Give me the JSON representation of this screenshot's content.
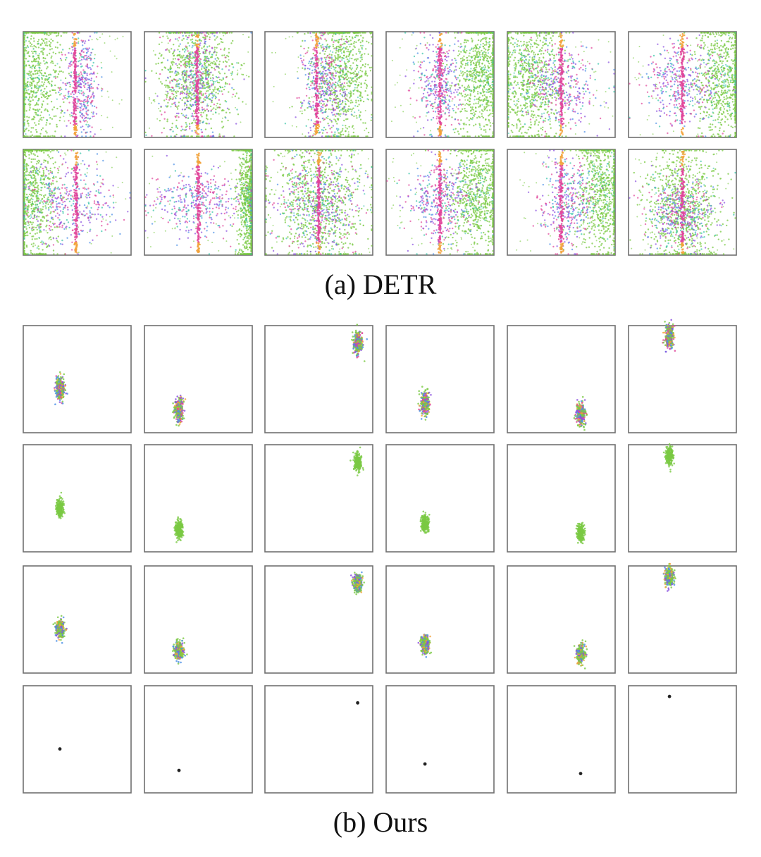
{
  "captions": {
    "a": "(a) DETR",
    "b": "(b) Ours"
  },
  "colors": {
    "green": "#7ac943",
    "teal": "#36c4a8",
    "blue": "#4a8ee6",
    "purple": "#8a4fe0",
    "magenta": "#e0449a",
    "orange": "#f2a23a",
    "black": "#222222"
  },
  "chart_data": [
    {
      "type": "scatter",
      "panel_group": "DETR",
      "rows": 2,
      "cols": 6,
      "xlim": [
        0,
        1
      ],
      "ylim": [
        0,
        1
      ],
      "grid": false,
      "panels": [
        {
          "green": {
            "cx": 0.1,
            "cy": 0.55,
            "sx": 0.14,
            "sy": 0.35
          },
          "dense": {
            "cx": 0.55,
            "cy": 0.5,
            "sx": 0.08,
            "sy": 0.25
          },
          "line_x": 0.48
        },
        {
          "green": {
            "cx": 0.48,
            "cy": 0.6,
            "sx": 0.17,
            "sy": 0.3
          },
          "dense": {
            "cx": 0.47,
            "cy": 0.5,
            "sx": 0.15,
            "sy": 0.28
          },
          "line_x": 0.49
        },
        {
          "green": {
            "cx": 0.72,
            "cy": 0.6,
            "sx": 0.14,
            "sy": 0.33
          },
          "dense": {
            "cx": 0.55,
            "cy": 0.5,
            "sx": 0.1,
            "sy": 0.25
          },
          "line_x": 0.48
        },
        {
          "green": {
            "cx": 0.88,
            "cy": 0.6,
            "sx": 0.12,
            "sy": 0.3
          },
          "dense": {
            "cx": 0.5,
            "cy": 0.5,
            "sx": 0.1,
            "sy": 0.25
          },
          "line_x": 0.5
        },
        {
          "green": {
            "cx": 0.2,
            "cy": 0.55,
            "sx": 0.16,
            "sy": 0.33
          },
          "dense": {
            "cx": 0.5,
            "cy": 0.5,
            "sx": 0.17,
            "sy": 0.2
          },
          "line_x": 0.5
        },
        {
          "green": {
            "cx": 0.9,
            "cy": 0.55,
            "sx": 0.14,
            "sy": 0.3
          },
          "dense": {
            "cx": 0.5,
            "cy": 0.5,
            "sx": 0.18,
            "sy": 0.2
          },
          "line_x": 0.5
        }
      ],
      "panels_row2": [
        {
          "green": {
            "cx": 0.08,
            "cy": 0.55,
            "sx": 0.12,
            "sy": 0.35
          },
          "dense": {
            "cx": 0.45,
            "cy": 0.5,
            "sx": 0.2,
            "sy": 0.2
          },
          "line_x": 0.49
        },
        {
          "green": {
            "cx": 0.97,
            "cy": 0.5,
            "sx": 0.05,
            "sy": 0.35
          },
          "dense": {
            "cx": 0.5,
            "cy": 0.5,
            "sx": 0.22,
            "sy": 0.15
          },
          "line_x": 0.5
        },
        {
          "green": {
            "cx": 0.5,
            "cy": 0.5,
            "sx": 0.22,
            "sy": 0.3
          },
          "dense": {
            "cx": 0.5,
            "cy": 0.5,
            "sx": 0.2,
            "sy": 0.24
          },
          "line_x": 0.5
        },
        {
          "green": {
            "cx": 0.85,
            "cy": 0.55,
            "sx": 0.14,
            "sy": 0.3
          },
          "dense": {
            "cx": 0.5,
            "cy": 0.5,
            "sx": 0.15,
            "sy": 0.2
          },
          "line_x": 0.5
        },
        {
          "green": {
            "cx": 0.9,
            "cy": 0.6,
            "sx": 0.13,
            "sy": 0.33
          },
          "dense": {
            "cx": 0.55,
            "cy": 0.5,
            "sx": 0.12,
            "sy": 0.2
          },
          "line_x": 0.5
        },
        {
          "green": {
            "cx": 0.5,
            "cy": 0.45,
            "sx": 0.18,
            "sy": 0.3
          },
          "dense": {
            "cx": 0.5,
            "cy": 0.4,
            "sx": 0.17,
            "sy": 0.16
          },
          "line_x": 0.5
        }
      ]
    },
    {
      "type": "scatter",
      "panel_group": "Ours",
      "rows": 4,
      "cols": 6,
      "xlim": [
        0,
        1
      ],
      "ylim": [
        0,
        1
      ],
      "grid": false,
      "centers": [
        {
          "cx": 0.34,
          "cy": 0.41
        },
        {
          "cx": 0.32,
          "cy": 0.21
        },
        {
          "cx": 0.86,
          "cy": 0.84
        },
        {
          "cx": 0.36,
          "cy": 0.27
        },
        {
          "cx": 0.68,
          "cy": 0.18
        },
        {
          "cx": 0.38,
          "cy": 0.9
        }
      ],
      "spread": {
        "sx": 0.045,
        "sy": 0.12
      },
      "rows_style": [
        "mixed",
        "green",
        "mixed-green",
        "point"
      ]
    }
  ]
}
